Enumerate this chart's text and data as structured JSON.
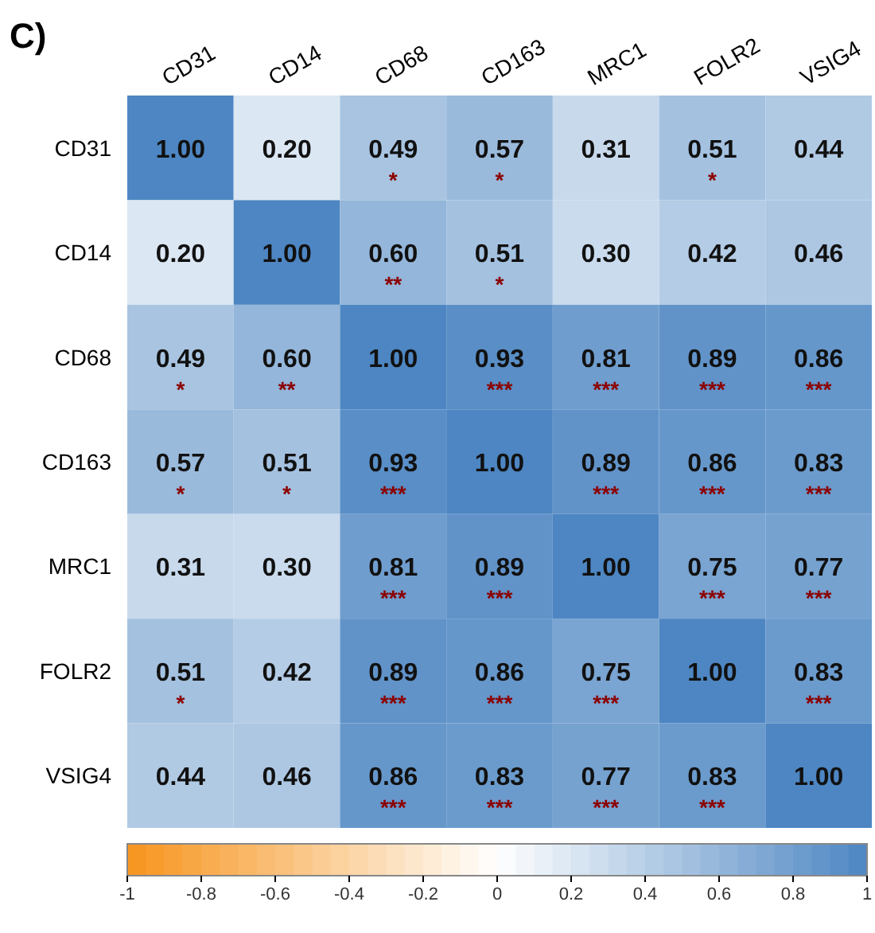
{
  "chart_data": {
    "type": "heatmap",
    "title": "C)",
    "categories": [
      "CD31",
      "CD14",
      "CD68",
      "CD163",
      "MRC1",
      "FOLR2",
      "VSIG4"
    ],
    "y_categories": [
      "CD31",
      "CD14",
      "CD68",
      "CD163",
      "MRC1",
      "FOLR2",
      "VSIG4"
    ],
    "cells": [
      [
        1.0,
        0.2,
        0.49,
        0.57,
        0.31,
        0.51,
        0.44
      ],
      [
        0.2,
        1.0,
        0.6,
        0.51,
        0.3,
        0.42,
        0.46
      ],
      [
        0.49,
        0.6,
        1.0,
        0.93,
        0.81,
        0.89,
        0.86
      ],
      [
        0.57,
        0.51,
        0.93,
        1.0,
        0.89,
        0.86,
        0.83
      ],
      [
        0.31,
        0.3,
        0.81,
        0.89,
        1.0,
        0.75,
        0.77
      ],
      [
        0.51,
        0.42,
        0.89,
        0.86,
        0.75,
        1.0,
        0.83
      ],
      [
        0.44,
        0.46,
        0.86,
        0.83,
        0.77,
        0.83,
        1.0
      ]
    ],
    "cell_labels": [
      [
        "1.00",
        "0.20",
        "0.49\n*",
        "0.57\n*",
        "0.31",
        "0.51\n*",
        "0.44"
      ],
      [
        "0.20",
        "1.00",
        "0.60\n**",
        "0.51\n*",
        "0.30",
        "0.42",
        "0.46"
      ],
      [
        "0.49\n*",
        "0.60\n**",
        "1.00",
        "0.93\n***",
        "0.81\n***",
        "0.89\n***",
        "0.86\n***"
      ],
      [
        "0.57\n*",
        "0.51\n*",
        "0.93\n***",
        "1.00",
        "0.89\n***",
        "0.86\n***",
        "0.83\n***"
      ],
      [
        "0.31",
        "0.30",
        "0.81\n***",
        "0.89\n***",
        "1.00",
        "0.75\n***",
        "0.77\n***"
      ],
      [
        "0.51\n*",
        "0.42",
        "0.89\n***",
        "0.86\n***",
        "0.75\n***",
        "1.00",
        "0.83\n***"
      ],
      [
        "0.44",
        "0.46",
        "0.86\n***",
        "0.83\n***",
        "0.77\n***",
        "0.83\n***",
        "1.00"
      ]
    ],
    "clim": [
      -1,
      1
    ],
    "cticks": [
      {
        "value": -1,
        "label": "-1"
      },
      -0.8,
      -0.6,
      -0.4,
      -0.2,
      0,
      0.2,
      0.4,
      0.6,
      0.8,
      {
        "value": 1,
        "label": "1"
      }
    ]
  }
}
